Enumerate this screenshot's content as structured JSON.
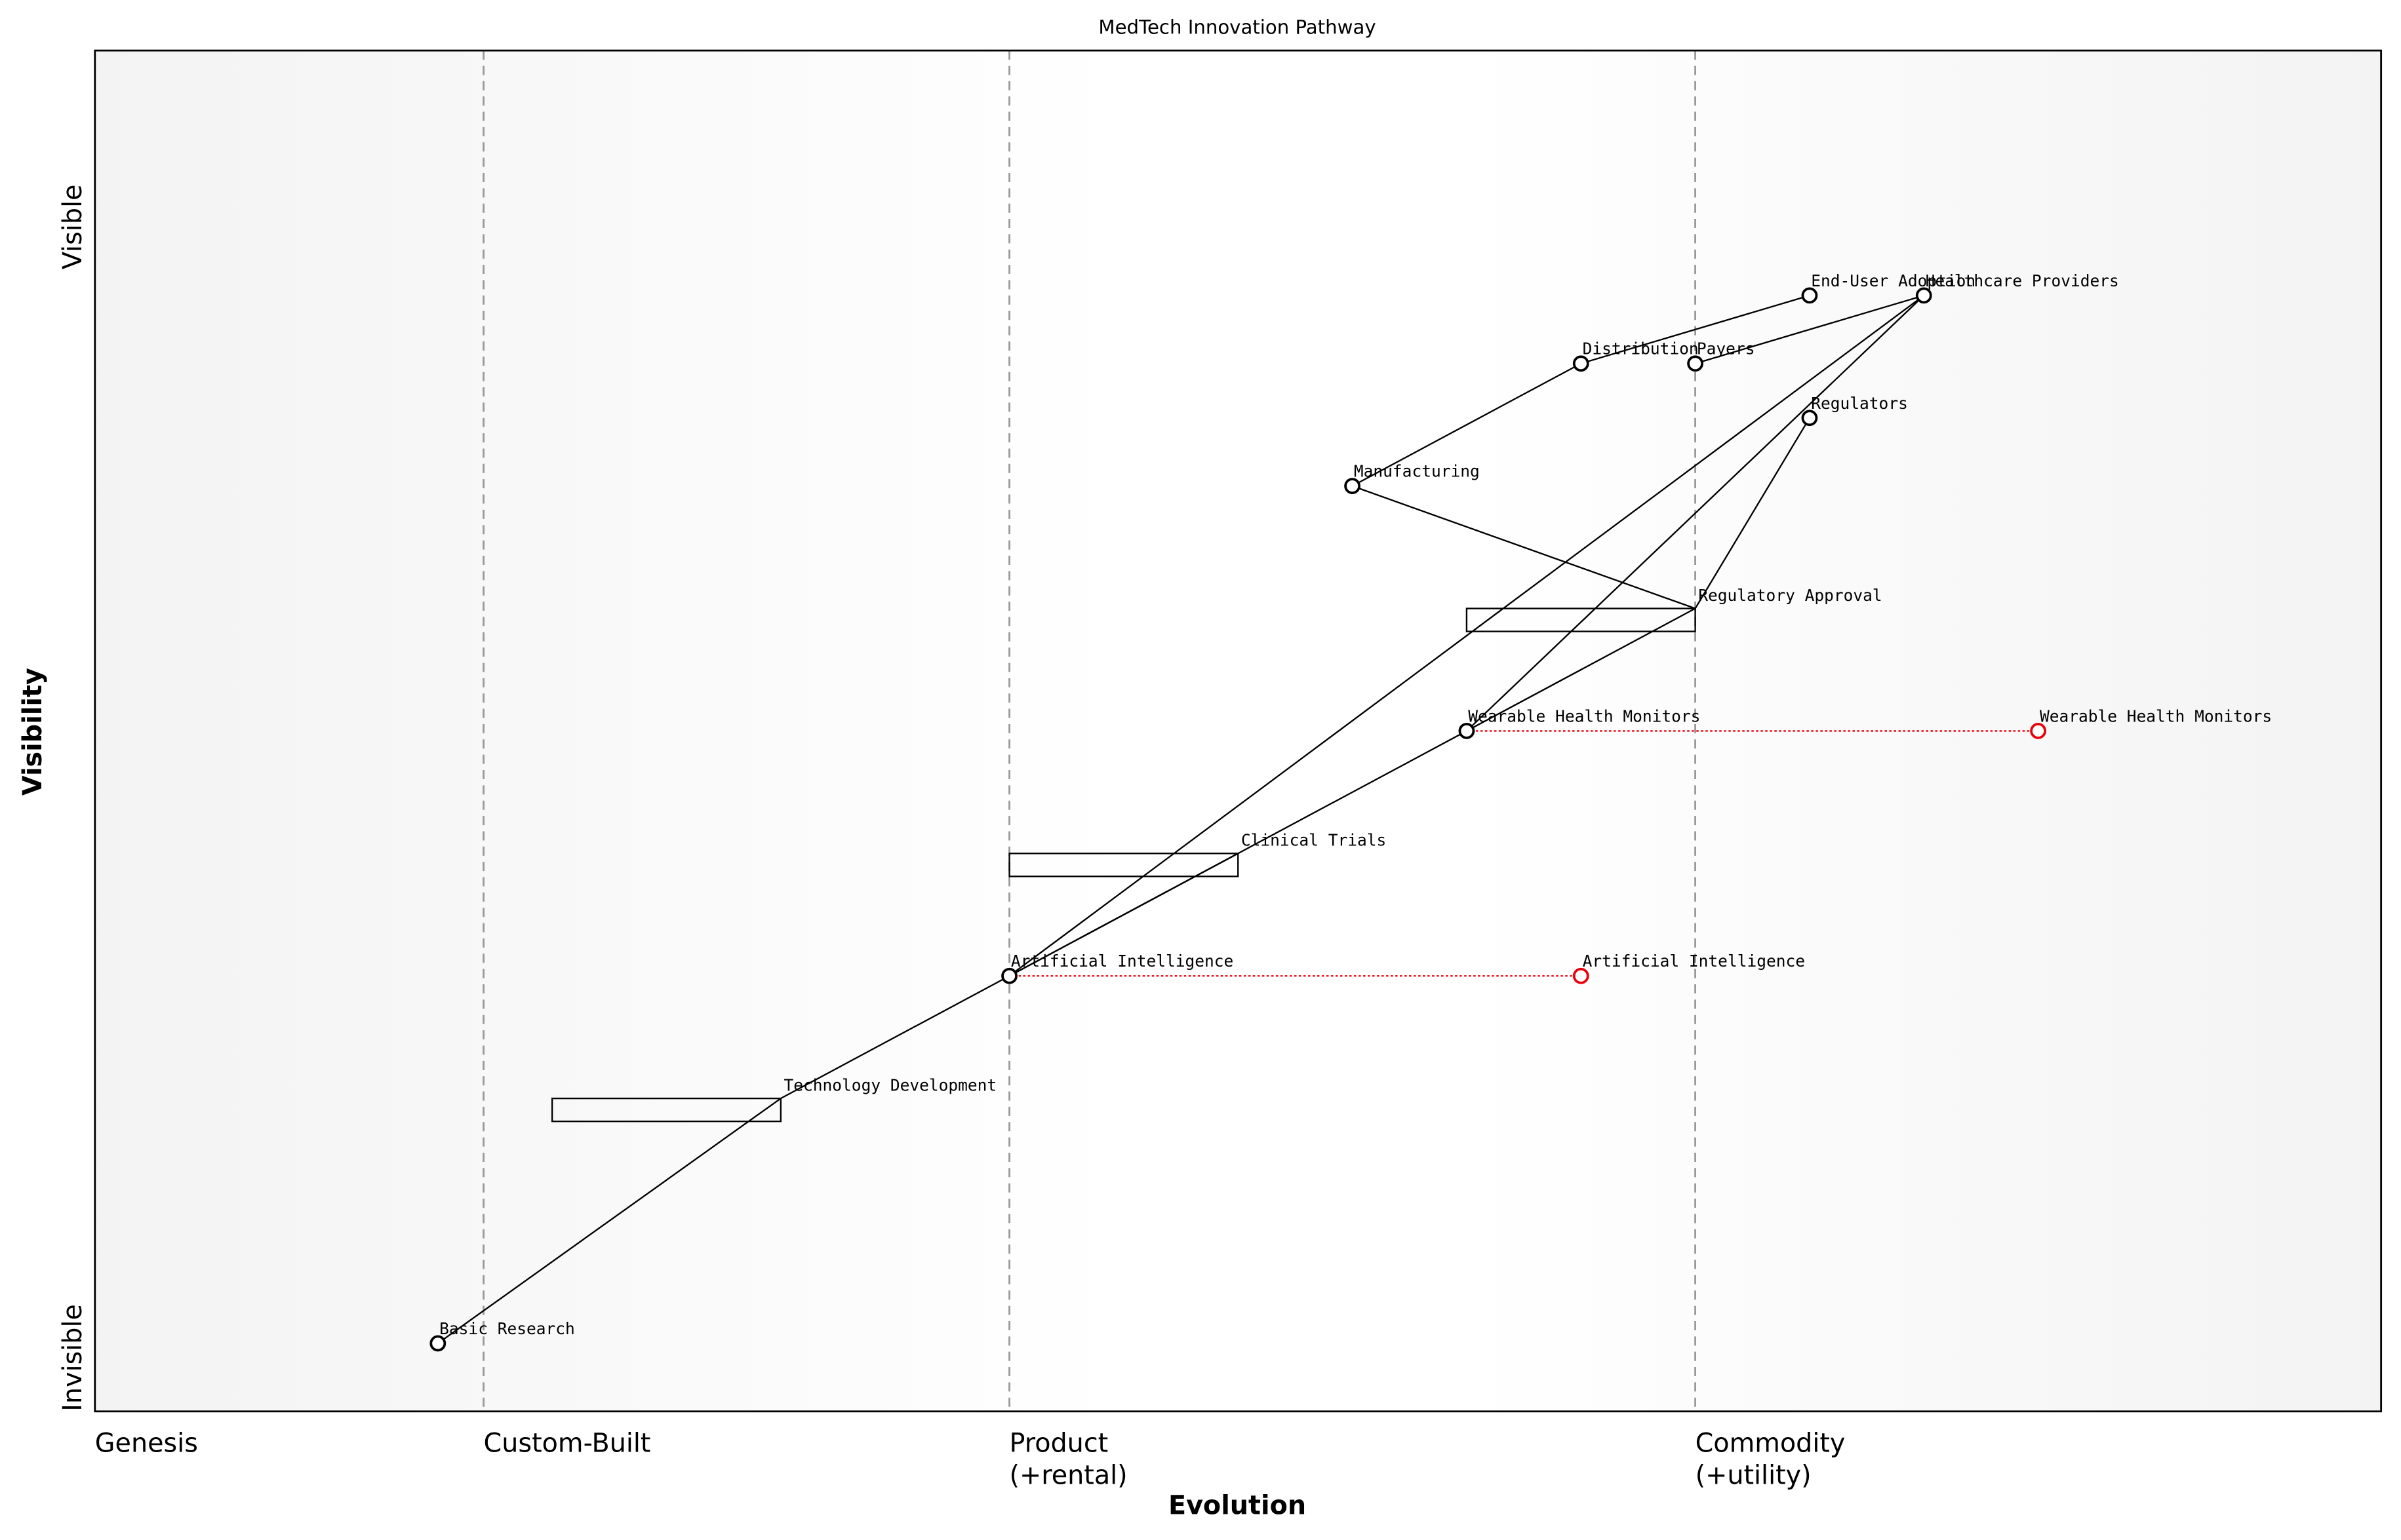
{
  "chart_data": {
    "type": "wardley",
    "title": "MedTech Innovation Pathway",
    "xlabel": "Evolution",
    "ylabel": "Visibility",
    "xlim": [
      0,
      1
    ],
    "ylim": [
      0,
      1
    ],
    "y_end_labels": {
      "low": "Invisible",
      "high": "Visible"
    },
    "stages": [
      {
        "value": 0,
        "lines": [
          "Genesis"
        ]
      },
      {
        "value": 0.17,
        "lines": [
          "Custom-Built"
        ]
      },
      {
        "value": 0.4,
        "lines": [
          "Product",
          "(+rental)"
        ]
      },
      {
        "value": 0.7,
        "lines": [
          "Commodity",
          "(+utility)"
        ]
      }
    ],
    "components": [
      {
        "name": "Basic Research",
        "evolution": 0.15,
        "visibility": 0.05
      },
      {
        "name": "Artificial Intelligence",
        "evolution": 0.4,
        "visibility": 0.32
      },
      {
        "name": "Wearable Health Monitors",
        "evolution": 0.6,
        "visibility": 0.5
      },
      {
        "name": "Manufacturing",
        "evolution": 0.55,
        "visibility": 0.68
      },
      {
        "name": "Distribution",
        "evolution": 0.65,
        "visibility": 0.77
      },
      {
        "name": "Payers",
        "evolution": 0.7,
        "visibility": 0.77
      },
      {
        "name": "End-User Adoption",
        "evolution": 0.75,
        "visibility": 0.82
      },
      {
        "name": "Healthcare Providers",
        "evolution": 0.8,
        "visibility": 0.82
      },
      {
        "name": "Regulators",
        "evolution": 0.75,
        "visibility": 0.73
      }
    ],
    "pipelines": [
      {
        "name": "Technology Development",
        "evolution": [
          0.2,
          0.3
        ],
        "visibility": 0.23
      },
      {
        "name": "Clinical Trials",
        "evolution": [
          0.4,
          0.5
        ],
        "visibility": 0.41
      },
      {
        "name": "Regulatory Approval",
        "evolution": [
          0.6,
          0.7
        ],
        "visibility": 0.59
      }
    ],
    "links": [
      [
        "Basic Research",
        "Technology Development"
      ],
      [
        "Technology Development",
        "Artificial Intelligence"
      ],
      [
        "Artificial Intelligence",
        "Clinical Trials"
      ],
      [
        "Artificial Intelligence",
        "Wearable Health Monitors"
      ],
      [
        "Artificial Intelligence",
        "Healthcare Providers"
      ],
      [
        "Wearable Health Monitors",
        "Regulatory Approval"
      ],
      [
        "Wearable Health Monitors",
        "Healthcare Providers"
      ],
      [
        "Regulatory Approval",
        "Regulators"
      ],
      [
        "Manufacturing",
        "Regulatory Approval"
      ],
      [
        "Manufacturing",
        "Distribution"
      ],
      [
        "Distribution",
        "End-User Adoption"
      ],
      [
        "Payers",
        "Healthcare Providers"
      ]
    ],
    "evolve": [
      {
        "label": "Artificial Intelligence",
        "from": 0.4,
        "to": 0.65,
        "visibility": 0.32,
        "color": "#e8000b"
      },
      {
        "label": "Wearable Health Monitors",
        "from": 0.6,
        "to": 0.85,
        "visibility": 0.5,
        "color": "#e8000b"
      }
    ]
  }
}
